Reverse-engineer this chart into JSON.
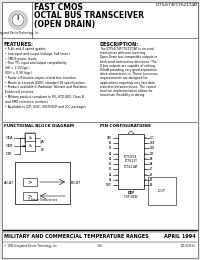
{
  "bg_color": "#e8e8e8",
  "page_bg": "#ffffff",
  "title_part": "IDT54/74FCT621T/AT",
  "title_line1": "FAST CMOS",
  "title_line2": "OCTAL BUS TRANSCEIVER",
  "title_line3": "(OPEN DRAIN)",
  "features_title": "FEATURES:",
  "features": [
    "8-bit and 4 speed grades",
    "Low input and output leakage 1uA (max.)",
    "CMOS power levels",
    "True TTL input and output compatibility",
    "  VIH = 2.0V(typ.)",
    "  VOH = 0.9V (typ.)",
    "Power off-tristate output control bus insertion",
    "Meets or exceeds JEDEC standard 18 specifications",
    "Product available in Radiation Tolerant and Radiation",
    "  Enhanced versions",
    "Military product-compliant to MIL-STD-883, Class B",
    "  and SMD reference numbers",
    "Available in DIP, SOIC, SSOP/SOP and LCC packages"
  ],
  "desc_title": "DESCRIPTION:",
  "description": "The IDT54/74FCT621T/AT is an octal transceiver with non-inverting Open-Drain bus compatible outputs in both send and receive directions. The 8 bus outputs are capable of sinking 64mA providing very good separation drive characteristics. These numerous improvements are designed for applications requiring very fast data transfers between buses. The control function implementation allows for maximum flexibility in wiring.",
  "func_title": "FUNCTIONAL BLOCK DIAGRAM",
  "pin_title": "PIN CONFIGURATIONS",
  "bottom_line1": "MILITARY AND COMMERCIAL TEMPERATURE RANGES",
  "bottom_line2": "APRIL 1994",
  "bottom_line3": "1994 Integrated Device Technology, Inc.",
  "bottom_line4": "3-19",
  "bottom_line5": "005-000513",
  "pin_labels_left": [
    "CAB",
    "A1",
    "B1",
    "A2",
    "B2",
    "A3",
    "B3",
    "A4",
    "B4",
    "GND"
  ],
  "pin_labels_right": [
    "VCC",
    "OEA",
    "OEB",
    "DIR",
    "B8",
    "A8",
    "B7",
    "A7",
    "B6",
    "A6"
  ],
  "pin_numbers_left": [
    1,
    2,
    3,
    4,
    5,
    6,
    7,
    8,
    9,
    10
  ],
  "pin_numbers_right": [
    20,
    19,
    18,
    17,
    16,
    15,
    14,
    13,
    12,
    11
  ]
}
